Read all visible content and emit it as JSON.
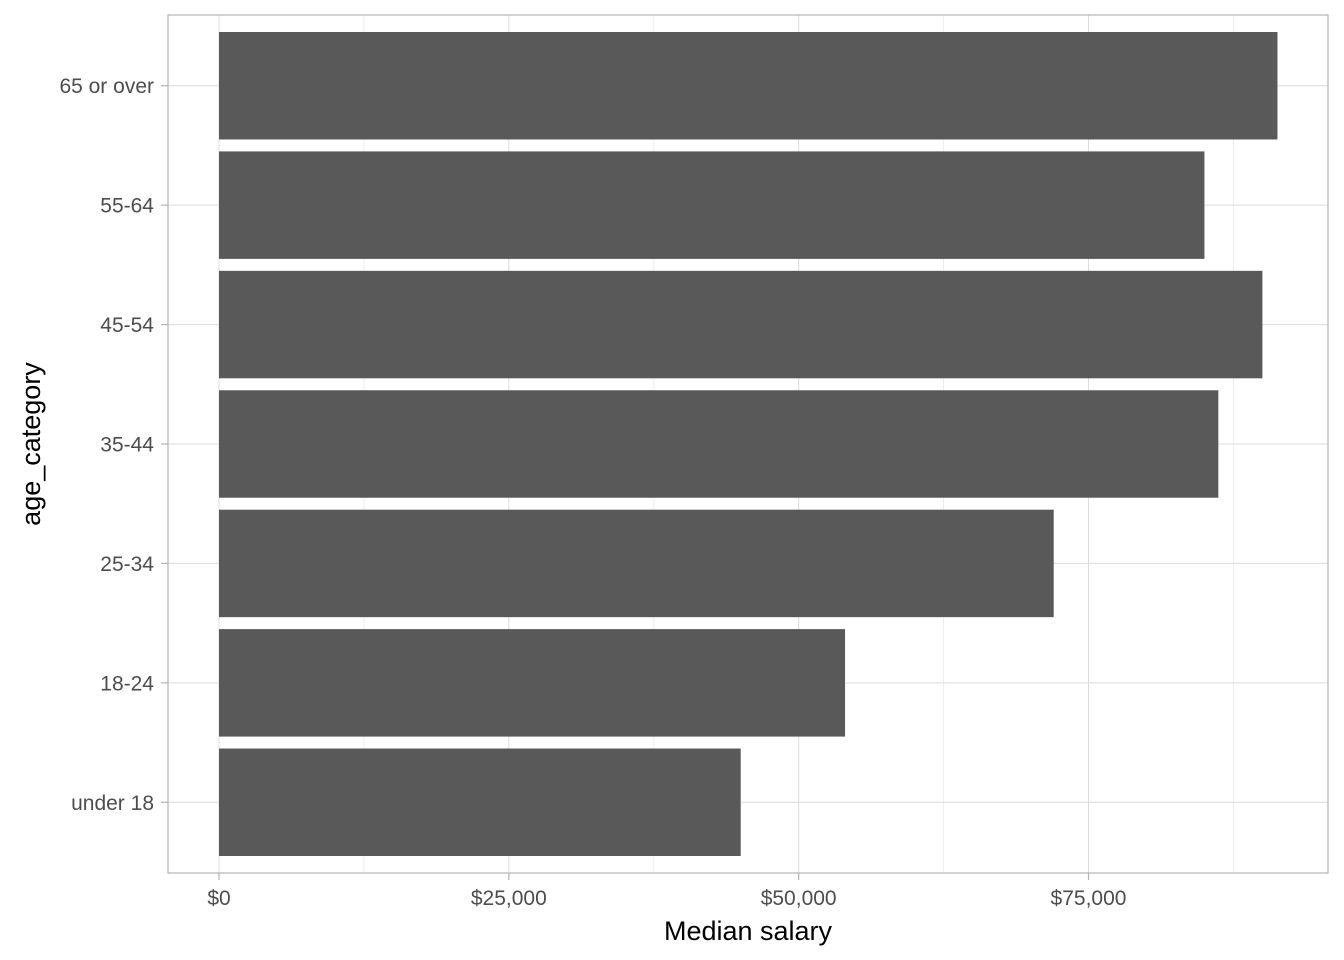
{
  "chart_data": {
    "type": "bar",
    "orientation": "horizontal",
    "categories": [
      "under 18",
      "18-24",
      "25-34",
      "35-44",
      "45-54",
      "55-64",
      "65 or over"
    ],
    "values": [
      45000,
      54000,
      72000,
      86200,
      90000,
      85000,
      91300
    ],
    "xlabel": "Median salary",
    "ylabel": "age_category",
    "xlim": [
      0,
      95000
    ],
    "x_ticks": [
      0,
      25000,
      50000,
      75000
    ],
    "x_tick_labels": [
      "$0",
      "$25,000",
      "$50,000",
      "$75,000"
    ],
    "grid": true,
    "bar_color": "#595959",
    "grid_color": "#dcdcdc",
    "panel_border_color": "#b3b3b3"
  }
}
